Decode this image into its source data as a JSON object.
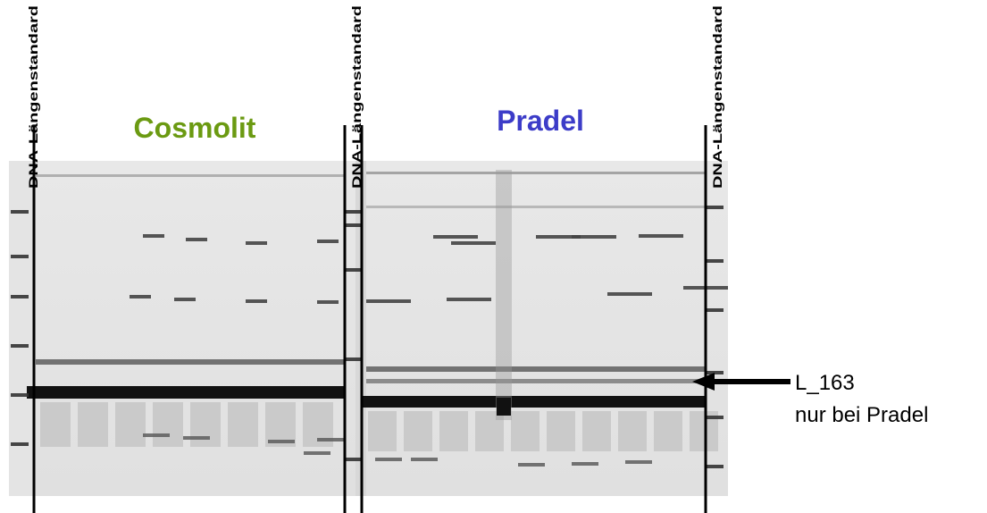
{
  "labels": {
    "group_left": "Cosmolit",
    "group_right": "Pradel",
    "standards": [
      "DNA-Längenstandard",
      "DNA-Längenstandard",
      "DNA-Längenstandard"
    ]
  },
  "annotation": {
    "marker": "L_163",
    "note": "nur bei Pradel"
  }
}
